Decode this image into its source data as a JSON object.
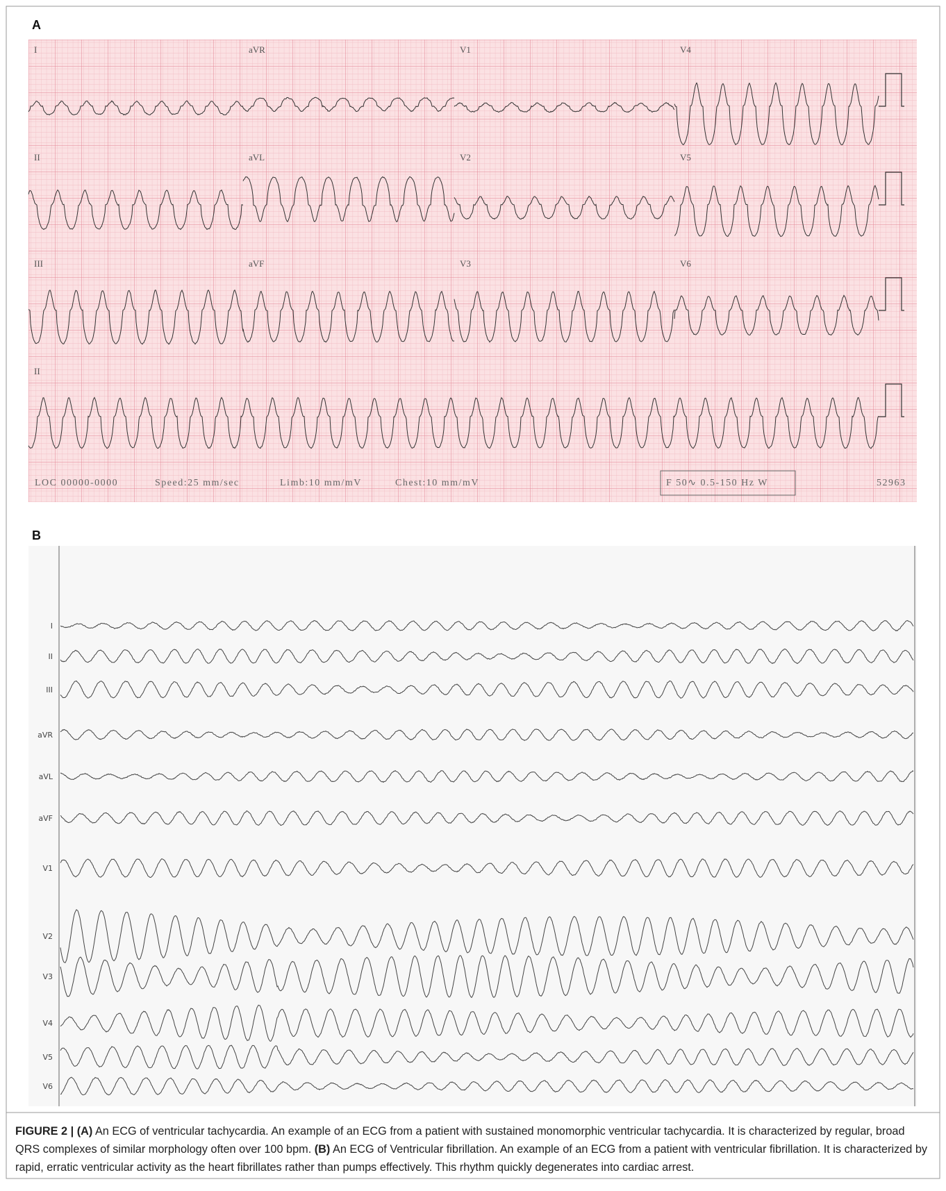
{
  "panel_a": {
    "label": "A",
    "leads": [
      [
        "I",
        "aVR",
        "V1",
        "V4"
      ],
      [
        "II",
        "aVL",
        "V2",
        "V5"
      ],
      [
        "III",
        "aVF",
        "V3",
        "V6"
      ],
      [
        "II"
      ]
    ],
    "footer": [
      "LOC 00000-0000",
      "Speed:25 mm/sec",
      "Limb:10 mm/mV",
      "Chest:10 mm/mV"
    ],
    "filter": "F 50∿ 0.5-150 Hz W",
    "id": "52963"
  },
  "panel_b": {
    "label": "B",
    "leads": [
      "I",
      "II",
      "III",
      "aVR",
      "aVL",
      "aVF",
      "V1",
      "V2",
      "V3",
      "V4",
      "V5",
      "V6"
    ]
  },
  "caption": {
    "figure": "FIGURE 2 |",
    "a_label": "(A)",
    "a_text": "An ECG of ventricular tachycardia. An example of an ECG from a patient with sustained monomorphic ventricular tachycardia. It is characterized by regular, broad QRS complexes of similar morphology often over 100 bpm.",
    "b_label": "(B)",
    "b_text": "An ECG of Ventricular fibrillation. An example of an ECG from a patient with ventricular fibrillation. It is characterized by rapid, erratic ventricular activity as the heart fibrillates rather than pumps effectively. This rhythm quickly degenerates into cardiac arrest."
  }
}
